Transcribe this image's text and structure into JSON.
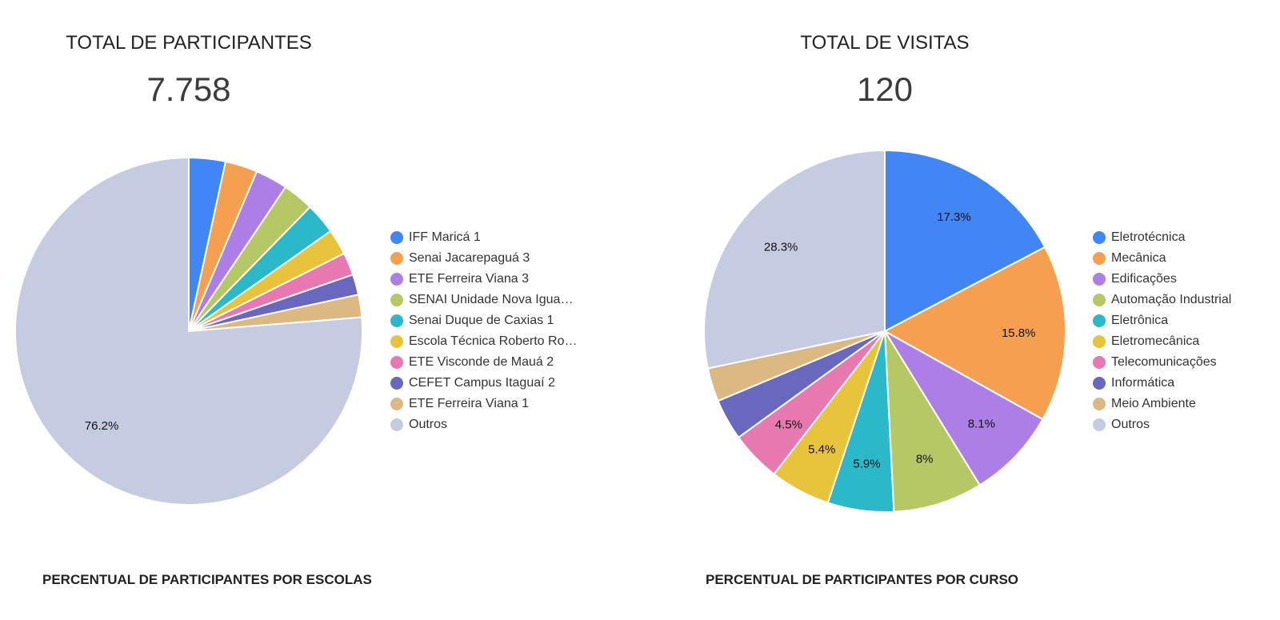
{
  "left": {
    "title": "TOTAL DE PARTICIPANTES",
    "value": "7.758",
    "footer": "PERCENTUAL DE PARTICIPANTES POR ESCOLAS"
  },
  "right": {
    "title": "TOTAL DE VISITAS",
    "value": "120",
    "footer": "PERCENTUAL DE PARTICIPANTES POR CURSO"
  },
  "chart_data": [
    {
      "type": "pie",
      "categories": [
        "IFF Maricá 1",
        "Senai Jacarepaguá 3",
        "ETE Ferreira Viana 3",
        "SENAI Unidade Nova Igua…",
        "Senai Duque de Caxias 1",
        "Escola Técnica Roberto Ro…",
        "ETE Visconde de Mauá 2",
        "CEFET Campus Itaguaí 2",
        "ETE Ferreira Viana 1",
        "Outros"
      ],
      "values": [
        3.4,
        3.0,
        3.0,
        2.9,
        2.9,
        2.4,
        2.1,
        1.9,
        2.1,
        76.2
      ],
      "labels": [
        "",
        "",
        "",
        "",
        "",
        "",
        "",
        "",
        "",
        "76.2%"
      ],
      "colors": [
        "#4285f4",
        "#f4a050",
        "#ad7fe6",
        "#b5c865",
        "#2bb8c9",
        "#e8c43c",
        "#e879b0",
        "#6967be",
        "#dcb983",
        "#c5cbe1"
      ],
      "legend": "right"
    },
    {
      "type": "pie",
      "categories": [
        "Eletrotécnica",
        "Mecânica",
        "Edificações",
        "Automação Industrial",
        "Eletrônica",
        "Eletromecânica",
        "Telecomunicações",
        "Informática",
        "Meio Ambiente",
        "Outros"
      ],
      "values": [
        17.3,
        15.8,
        8.1,
        8,
        5.9,
        5.4,
        4.5,
        3.7,
        3.0,
        28.3
      ],
      "labels": [
        "17.3%",
        "15.8%",
        "8.1%",
        "8%",
        "5.9%",
        "5.4%",
        "4.5%",
        "",
        "",
        "28.3%"
      ],
      "colors": [
        "#4285f4",
        "#f4a050",
        "#ad7fe6",
        "#b5c865",
        "#2bb8c9",
        "#e8c43c",
        "#e879b0",
        "#6967be",
        "#dcb983",
        "#c5cbe1"
      ],
      "legend": "right"
    }
  ]
}
